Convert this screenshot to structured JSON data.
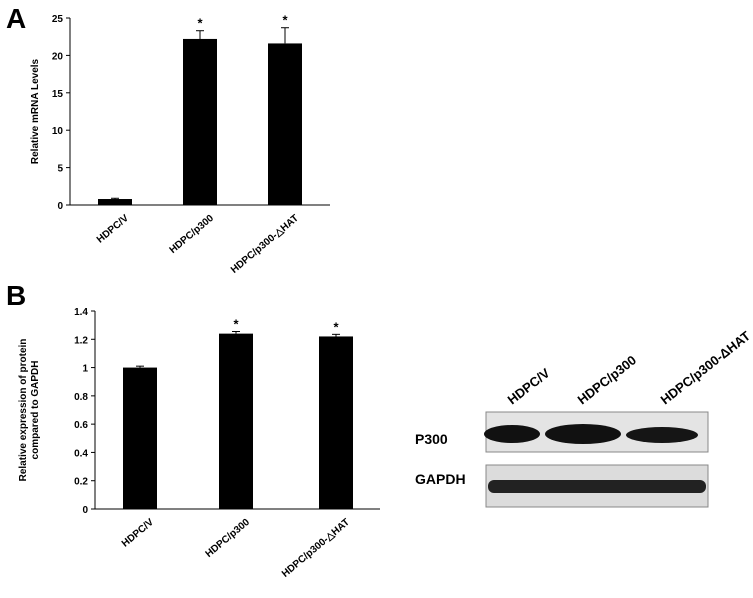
{
  "panels": [
    "A",
    "B"
  ],
  "chart_data": [
    {
      "type": "bar",
      "ylabel": [
        "Relative mRNA Levels"
      ],
      "categories": [
        "HDPC/V",
        "HDPC/p300",
        "HDPC/p300-△HAT"
      ],
      "values": [
        0.8,
        22.2,
        21.6
      ],
      "errors": [
        0.1,
        1.1,
        2.1
      ],
      "significance": [
        null,
        "*",
        "*"
      ],
      "color": "#000000",
      "ylim": [
        0,
        25
      ],
      "yticks": [
        0,
        5,
        10,
        15,
        20,
        25
      ]
    },
    {
      "type": "bar",
      "ylabel": [
        "Relative expression of protein",
        "compared to GAPDH"
      ],
      "categories": [
        "HDPC/V",
        "HDPC/p300",
        "HDPC/p300-△HAT"
      ],
      "values": [
        1.0,
        1.24,
        1.22
      ],
      "errors": [
        0.01,
        0.015,
        0.015
      ],
      "significance": [
        null,
        "*",
        "*"
      ],
      "color": "#000000",
      "ylim": [
        0,
        1.4
      ],
      "yticks": [
        0,
        0.2,
        0.4,
        0.6,
        0.8,
        1,
        1.2,
        1.4
      ]
    }
  ],
  "blot": {
    "lanes": [
      "HDPC/V",
      "HDPC/p300",
      "HDPC/p300-ΔHAT"
    ],
    "rows": [
      "P300",
      "GAPDH"
    ]
  }
}
